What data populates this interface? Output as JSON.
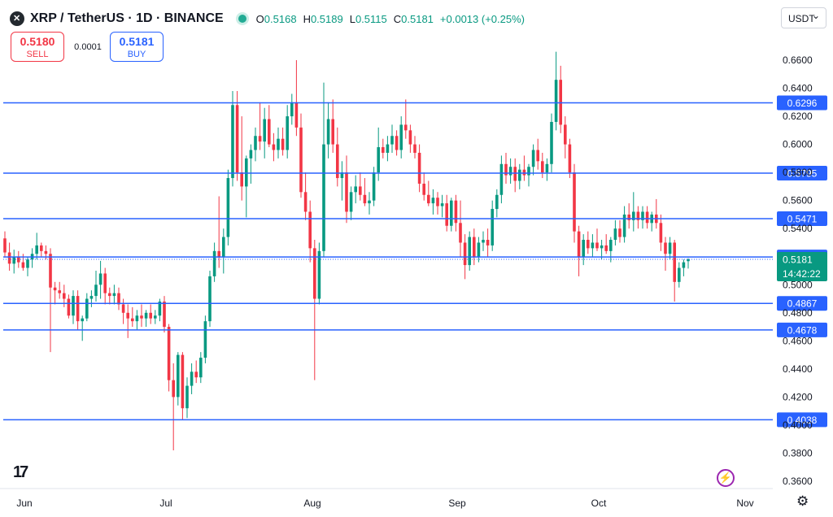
{
  "header": {
    "symbol_title": "XRP / TetherUS · 1D · BINANCE",
    "open_label": "O",
    "open": "0.5168",
    "high_label": "H",
    "high": "0.5189",
    "low_label": "L",
    "low": "0.5115",
    "close_label": "C",
    "close": "0.5181",
    "change": "+0.0013 (+0.25%)"
  },
  "trade": {
    "sell_price": "0.5180",
    "sell_label": "SELL",
    "spread": "0.0001",
    "buy_price": "0.5181",
    "buy_label": "BUY"
  },
  "currency_selector": "USDT",
  "colors": {
    "up": "#089981",
    "down": "#f23645",
    "level_line": "#2962ff",
    "price_tag": "#089981"
  },
  "icons": [
    "xrp-logo-icon",
    "market-status-icon",
    "tradingview-logo-icon",
    "flash-icon",
    "settings-gear-icon",
    "chevron-down-icon"
  ],
  "chart_data": {
    "type": "candlestick",
    "y_axis": {
      "min": 0.35,
      "max": 0.68,
      "ticks": [
        "0.6600",
        "0.6400",
        "0.6200",
        "0.6000",
        "0.5800",
        "0.5600",
        "0.5400",
        "0.5200",
        "0.5000",
        "0.4800",
        "0.4600",
        "0.4400",
        "0.4200",
        "0.4000",
        "0.3800",
        "0.3600"
      ]
    },
    "x_axis": {
      "labels": [
        "Jun",
        "Jul",
        "Aug",
        "Sep",
        "Oct",
        "Nov"
      ]
    },
    "horizontal_levels": [
      "0.6296",
      "0.5795",
      "0.5471",
      "0.5198",
      "0.4867",
      "0.4678",
      "0.4038"
    ],
    "last_price": "0.5181",
    "countdown": "14:42:22",
    "candles": [
      {
        "o": 0.533,
        "h": 0.538,
        "l": 0.52,
        "c": 0.523
      },
      {
        "o": 0.523,
        "h": 0.53,
        "l": 0.51,
        "c": 0.515
      },
      {
        "o": 0.515,
        "h": 0.525,
        "l": 0.508,
        "c": 0.52
      },
      {
        "o": 0.52,
        "h": 0.524,
        "l": 0.512,
        "c": 0.516
      },
      {
        "o": 0.516,
        "h": 0.522,
        "l": 0.51,
        "c": 0.512
      },
      {
        "o": 0.512,
        "h": 0.52,
        "l": 0.506,
        "c": 0.518
      },
      {
        "o": 0.518,
        "h": 0.526,
        "l": 0.512,
        "c": 0.522
      },
      {
        "o": 0.522,
        "h": 0.537,
        "l": 0.518,
        "c": 0.528
      },
      {
        "o": 0.528,
        "h": 0.53,
        "l": 0.52,
        "c": 0.524
      },
      {
        "o": 0.524,
        "h": 0.528,
        "l": 0.518,
        "c": 0.522
      },
      {
        "o": 0.522,
        "h": 0.526,
        "l": 0.452,
        "c": 0.498
      },
      {
        "o": 0.498,
        "h": 0.502,
        "l": 0.486,
        "c": 0.496
      },
      {
        "o": 0.496,
        "h": 0.502,
        "l": 0.49,
        "c": 0.494
      },
      {
        "o": 0.494,
        "h": 0.5,
        "l": 0.484,
        "c": 0.49
      },
      {
        "o": 0.49,
        "h": 0.493,
        "l": 0.476,
        "c": 0.478
      },
      {
        "o": 0.478,
        "h": 0.496,
        "l": 0.472,
        "c": 0.492
      },
      {
        "o": 0.492,
        "h": 0.496,
        "l": 0.468,
        "c": 0.474
      },
      {
        "o": 0.474,
        "h": 0.478,
        "l": 0.46,
        "c": 0.476
      },
      {
        "o": 0.476,
        "h": 0.494,
        "l": 0.474,
        "c": 0.49
      },
      {
        "o": 0.49,
        "h": 0.496,
        "l": 0.484,
        "c": 0.492
      },
      {
        "o": 0.492,
        "h": 0.51,
        "l": 0.488,
        "c": 0.5
      },
      {
        "o": 0.5,
        "h": 0.517,
        "l": 0.49,
        "c": 0.508
      },
      {
        "o": 0.508,
        "h": 0.512,
        "l": 0.486,
        "c": 0.494
      },
      {
        "o": 0.494,
        "h": 0.498,
        "l": 0.486,
        "c": 0.492
      },
      {
        "o": 0.492,
        "h": 0.5,
        "l": 0.486,
        "c": 0.494
      },
      {
        "o": 0.494,
        "h": 0.498,
        "l": 0.482,
        "c": 0.486
      },
      {
        "o": 0.486,
        "h": 0.49,
        "l": 0.472,
        "c": 0.48
      },
      {
        "o": 0.48,
        "h": 0.486,
        "l": 0.462,
        "c": 0.476
      },
      {
        "o": 0.476,
        "h": 0.484,
        "l": 0.47,
        "c": 0.474
      },
      {
        "o": 0.474,
        "h": 0.482,
        "l": 0.468,
        "c": 0.478
      },
      {
        "o": 0.478,
        "h": 0.486,
        "l": 0.47,
        "c": 0.476
      },
      {
        "o": 0.476,
        "h": 0.482,
        "l": 0.47,
        "c": 0.48
      },
      {
        "o": 0.48,
        "h": 0.486,
        "l": 0.472,
        "c": 0.476
      },
      {
        "o": 0.476,
        "h": 0.482,
        "l": 0.472,
        "c": 0.478
      },
      {
        "o": 0.478,
        "h": 0.49,
        "l": 0.474,
        "c": 0.488
      },
      {
        "o": 0.488,
        "h": 0.492,
        "l": 0.466,
        "c": 0.47
      },
      {
        "o": 0.47,
        "h": 0.472,
        "l": 0.424,
        "c": 0.432
      },
      {
        "o": 0.432,
        "h": 0.444,
        "l": 0.382,
        "c": 0.42
      },
      {
        "o": 0.42,
        "h": 0.452,
        "l": 0.414,
        "c": 0.45
      },
      {
        "o": 0.45,
        "h": 0.452,
        "l": 0.404,
        "c": 0.412
      },
      {
        "o": 0.412,
        "h": 0.434,
        "l": 0.405,
        "c": 0.428
      },
      {
        "o": 0.428,
        "h": 0.444,
        "l": 0.422,
        "c": 0.438
      },
      {
        "o": 0.438,
        "h": 0.446,
        "l": 0.43,
        "c": 0.434
      },
      {
        "o": 0.434,
        "h": 0.452,
        "l": 0.43,
        "c": 0.448
      },
      {
        "o": 0.448,
        "h": 0.478,
        "l": 0.444,
        "c": 0.474
      },
      {
        "o": 0.474,
        "h": 0.51,
        "l": 0.47,
        "c": 0.506
      },
      {
        "o": 0.506,
        "h": 0.53,
        "l": 0.502,
        "c": 0.524
      },
      {
        "o": 0.524,
        "h": 0.563,
        "l": 0.512,
        "c": 0.52
      },
      {
        "o": 0.52,
        "h": 0.54,
        "l": 0.508,
        "c": 0.534
      },
      {
        "o": 0.534,
        "h": 0.582,
        "l": 0.528,
        "c": 0.576
      },
      {
        "o": 0.576,
        "h": 0.638,
        "l": 0.57,
        "c": 0.628
      },
      {
        "o": 0.628,
        "h": 0.638,
        "l": 0.574,
        "c": 0.58
      },
      {
        "o": 0.58,
        "h": 0.62,
        "l": 0.56,
        "c": 0.57
      },
      {
        "o": 0.57,
        "h": 0.592,
        "l": 0.548,
        "c": 0.59
      },
      {
        "o": 0.59,
        "h": 0.6,
        "l": 0.572,
        "c": 0.596
      },
      {
        "o": 0.596,
        "h": 0.612,
        "l": 0.588,
        "c": 0.606
      },
      {
        "o": 0.606,
        "h": 0.63,
        "l": 0.596,
        "c": 0.602
      },
      {
        "o": 0.602,
        "h": 0.626,
        "l": 0.59,
        "c": 0.618
      },
      {
        "o": 0.618,
        "h": 0.628,
        "l": 0.598,
        "c": 0.6
      },
      {
        "o": 0.6,
        "h": 0.608,
        "l": 0.588,
        "c": 0.596
      },
      {
        "o": 0.596,
        "h": 0.612,
        "l": 0.59,
        "c": 0.604
      },
      {
        "o": 0.604,
        "h": 0.612,
        "l": 0.592,
        "c": 0.596
      },
      {
        "o": 0.596,
        "h": 0.628,
        "l": 0.59,
        "c": 0.62
      },
      {
        "o": 0.62,
        "h": 0.636,
        "l": 0.614,
        "c": 0.63
      },
      {
        "o": 0.63,
        "h": 0.66,
        "l": 0.606,
        "c": 0.612
      },
      {
        "o": 0.612,
        "h": 0.622,
        "l": 0.562,
        "c": 0.566
      },
      {
        "o": 0.566,
        "h": 0.58,
        "l": 0.546,
        "c": 0.552
      },
      {
        "o": 0.552,
        "h": 0.56,
        "l": 0.516,
        "c": 0.526
      },
      {
        "o": 0.526,
        "h": 0.532,
        "l": 0.432,
        "c": 0.49
      },
      {
        "o": 0.49,
        "h": 0.53,
        "l": 0.486,
        "c": 0.524
      },
      {
        "o": 0.524,
        "h": 0.644,
        "l": 0.52,
        "c": 0.6
      },
      {
        "o": 0.6,
        "h": 0.63,
        "l": 0.59,
        "c": 0.618
      },
      {
        "o": 0.618,
        "h": 0.632,
        "l": 0.594,
        "c": 0.6
      },
      {
        "o": 0.6,
        "h": 0.612,
        "l": 0.57,
        "c": 0.576
      },
      {
        "o": 0.576,
        "h": 0.588,
        "l": 0.56,
        "c": 0.58
      },
      {
        "o": 0.58,
        "h": 0.592,
        "l": 0.544,
        "c": 0.552
      },
      {
        "o": 0.552,
        "h": 0.57,
        "l": 0.546,
        "c": 0.566
      },
      {
        "o": 0.566,
        "h": 0.578,
        "l": 0.558,
        "c": 0.57
      },
      {
        "o": 0.57,
        "h": 0.58,
        "l": 0.56,
        "c": 0.564
      },
      {
        "o": 0.564,
        "h": 0.576,
        "l": 0.556,
        "c": 0.558
      },
      {
        "o": 0.558,
        "h": 0.566,
        "l": 0.55,
        "c": 0.56
      },
      {
        "o": 0.56,
        "h": 0.584,
        "l": 0.556,
        "c": 0.58
      },
      {
        "o": 0.58,
        "h": 0.612,
        "l": 0.574,
        "c": 0.598
      },
      {
        "o": 0.598,
        "h": 0.604,
        "l": 0.59,
        "c": 0.594
      },
      {
        "o": 0.594,
        "h": 0.606,
        "l": 0.588,
        "c": 0.6
      },
      {
        "o": 0.6,
        "h": 0.614,
        "l": 0.594,
        "c": 0.606
      },
      {
        "o": 0.606,
        "h": 0.61,
        "l": 0.592,
        "c": 0.596
      },
      {
        "o": 0.596,
        "h": 0.62,
        "l": 0.59,
        "c": 0.614
      },
      {
        "o": 0.614,
        "h": 0.632,
        "l": 0.604,
        "c": 0.61
      },
      {
        "o": 0.61,
        "h": 0.614,
        "l": 0.594,
        "c": 0.6
      },
      {
        "o": 0.6,
        "h": 0.606,
        "l": 0.59,
        "c": 0.594
      },
      {
        "o": 0.594,
        "h": 0.6,
        "l": 0.566,
        "c": 0.572
      },
      {
        "o": 0.572,
        "h": 0.58,
        "l": 0.56,
        "c": 0.564
      },
      {
        "o": 0.564,
        "h": 0.574,
        "l": 0.556,
        "c": 0.558
      },
      {
        "o": 0.558,
        "h": 0.568,
        "l": 0.55,
        "c": 0.562
      },
      {
        "o": 0.562,
        "h": 0.566,
        "l": 0.55,
        "c": 0.556
      },
      {
        "o": 0.556,
        "h": 0.564,
        "l": 0.548,
        "c": 0.558
      },
      {
        "o": 0.558,
        "h": 0.564,
        "l": 0.538,
        "c": 0.542
      },
      {
        "o": 0.542,
        "h": 0.562,
        "l": 0.538,
        "c": 0.56
      },
      {
        "o": 0.56,
        "h": 0.564,
        "l": 0.538,
        "c": 0.544
      },
      {
        "o": 0.544,
        "h": 0.56,
        "l": 0.52,
        "c": 0.53
      },
      {
        "o": 0.53,
        "h": 0.536,
        "l": 0.504,
        "c": 0.514
      },
      {
        "o": 0.514,
        "h": 0.538,
        "l": 0.51,
        "c": 0.534
      },
      {
        "o": 0.534,
        "h": 0.54,
        "l": 0.514,
        "c": 0.52
      },
      {
        "o": 0.52,
        "h": 0.534,
        "l": 0.516,
        "c": 0.53
      },
      {
        "o": 0.53,
        "h": 0.538,
        "l": 0.524,
        "c": 0.532
      },
      {
        "o": 0.532,
        "h": 0.54,
        "l": 0.52,
        "c": 0.528
      },
      {
        "o": 0.528,
        "h": 0.56,
        "l": 0.524,
        "c": 0.554
      },
      {
        "o": 0.554,
        "h": 0.568,
        "l": 0.548,
        "c": 0.564
      },
      {
        "o": 0.564,
        "h": 0.592,
        "l": 0.558,
        "c": 0.586
      },
      {
        "o": 0.586,
        "h": 0.594,
        "l": 0.572,
        "c": 0.578
      },
      {
        "o": 0.578,
        "h": 0.59,
        "l": 0.572,
        "c": 0.584
      },
      {
        "o": 0.584,
        "h": 0.59,
        "l": 0.566,
        "c": 0.574
      },
      {
        "o": 0.574,
        "h": 0.586,
        "l": 0.568,
        "c": 0.582
      },
      {
        "o": 0.582,
        "h": 0.592,
        "l": 0.574,
        "c": 0.578
      },
      {
        "o": 0.578,
        "h": 0.586,
        "l": 0.57,
        "c": 0.584
      },
      {
        "o": 0.584,
        "h": 0.6,
        "l": 0.578,
        "c": 0.596
      },
      {
        "o": 0.596,
        "h": 0.604,
        "l": 0.582,
        "c": 0.588
      },
      {
        "o": 0.588,
        "h": 0.594,
        "l": 0.576,
        "c": 0.58
      },
      {
        "o": 0.58,
        "h": 0.59,
        "l": 0.574,
        "c": 0.586
      },
      {
        "o": 0.586,
        "h": 0.622,
        "l": 0.58,
        "c": 0.616
      },
      {
        "o": 0.616,
        "h": 0.666,
        "l": 0.61,
        "c": 0.646
      },
      {
        "o": 0.646,
        "h": 0.656,
        "l": 0.608,
        "c": 0.614
      },
      {
        "o": 0.614,
        "h": 0.62,
        "l": 0.59,
        "c": 0.6
      },
      {
        "o": 0.6,
        "h": 0.604,
        "l": 0.576,
        "c": 0.58
      },
      {
        "o": 0.58,
        "h": 0.586,
        "l": 0.53,
        "c": 0.538
      },
      {
        "o": 0.538,
        "h": 0.542,
        "l": 0.506,
        "c": 0.52
      },
      {
        "o": 0.52,
        "h": 0.536,
        "l": 0.514,
        "c": 0.532
      },
      {
        "o": 0.532,
        "h": 0.538,
        "l": 0.522,
        "c": 0.526
      },
      {
        "o": 0.526,
        "h": 0.536,
        "l": 0.52,
        "c": 0.53
      },
      {
        "o": 0.53,
        "h": 0.54,
        "l": 0.524,
        "c": 0.526
      },
      {
        "o": 0.526,
        "h": 0.532,
        "l": 0.518,
        "c": 0.528
      },
      {
        "o": 0.528,
        "h": 0.536,
        "l": 0.522,
        "c": 0.524
      },
      {
        "o": 0.524,
        "h": 0.534,
        "l": 0.516,
        "c": 0.532
      },
      {
        "o": 0.532,
        "h": 0.546,
        "l": 0.528,
        "c": 0.54
      },
      {
        "o": 0.54,
        "h": 0.546,
        "l": 0.53,
        "c": 0.534
      },
      {
        "o": 0.534,
        "h": 0.556,
        "l": 0.53,
        "c": 0.55
      },
      {
        "o": 0.55,
        "h": 0.558,
        "l": 0.54,
        "c": 0.546
      },
      {
        "o": 0.546,
        "h": 0.566,
        "l": 0.538,
        "c": 0.552
      },
      {
        "o": 0.552,
        "h": 0.556,
        "l": 0.54,
        "c": 0.546
      },
      {
        "o": 0.546,
        "h": 0.556,
        "l": 0.54,
        "c": 0.552
      },
      {
        "o": 0.552,
        "h": 0.556,
        "l": 0.54,
        "c": 0.544
      },
      {
        "o": 0.544,
        "h": 0.552,
        "l": 0.538,
        "c": 0.55
      },
      {
        "o": 0.55,
        "h": 0.561,
        "l": 0.54,
        "c": 0.544
      },
      {
        "o": 0.544,
        "h": 0.55,
        "l": 0.524,
        "c": 0.53
      },
      {
        "o": 0.53,
        "h": 0.534,
        "l": 0.51,
        "c": 0.522
      },
      {
        "o": 0.522,
        "h": 0.534,
        "l": 0.518,
        "c": 0.53
      },
      {
        "o": 0.53,
        "h": 0.532,
        "l": 0.488,
        "c": 0.502
      },
      {
        "o": 0.502,
        "h": 0.516,
        "l": 0.498,
        "c": 0.512
      },
      {
        "o": 0.512,
        "h": 0.518,
        "l": 0.506,
        "c": 0.516
      },
      {
        "o": 0.5168,
        "h": 0.5189,
        "l": 0.5115,
        "c": 0.5181
      }
    ]
  }
}
